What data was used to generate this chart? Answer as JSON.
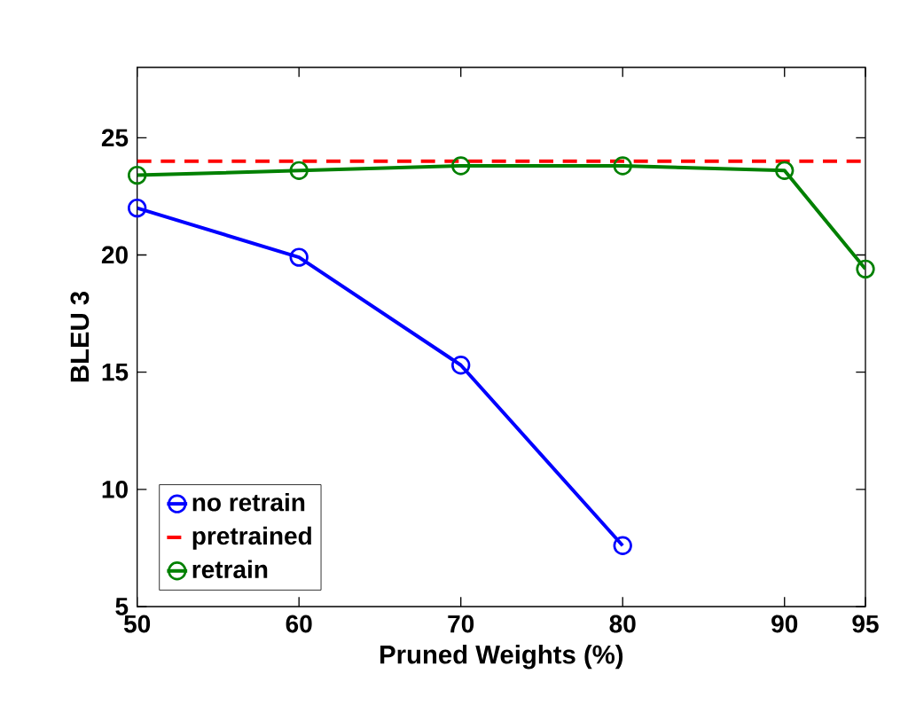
{
  "chart_data": {
    "type": "line",
    "xlabel": "Pruned Weights (%)",
    "ylabel": "BLEU 3",
    "x": [
      50,
      60,
      70,
      80,
      90,
      95
    ],
    "series": [
      {
        "name": "no retrain",
        "color": "#0000ff",
        "values": [
          22.0,
          19.9,
          15.3,
          7.6,
          null,
          null
        ],
        "marker": "circle",
        "line_style": "solid"
      },
      {
        "name": "pretrained",
        "color": "#ff0000",
        "x": [
          50,
          95
        ],
        "values": [
          24.0,
          24.0
        ],
        "marker": "none",
        "line_style": "dashed"
      },
      {
        "name": "retrain",
        "color": "#008000",
        "values": [
          23.4,
          23.6,
          23.8,
          23.8,
          23.6,
          19.4
        ],
        "marker": "circle",
        "line_style": "solid"
      }
    ],
    "xlim": [
      50,
      95
    ],
    "ylim": [
      5,
      28
    ],
    "xticks": [
      50,
      60,
      70,
      80,
      90,
      95
    ],
    "yticks": [
      5,
      10,
      15,
      20,
      25
    ],
    "grid": false,
    "legend": "bottom left"
  }
}
